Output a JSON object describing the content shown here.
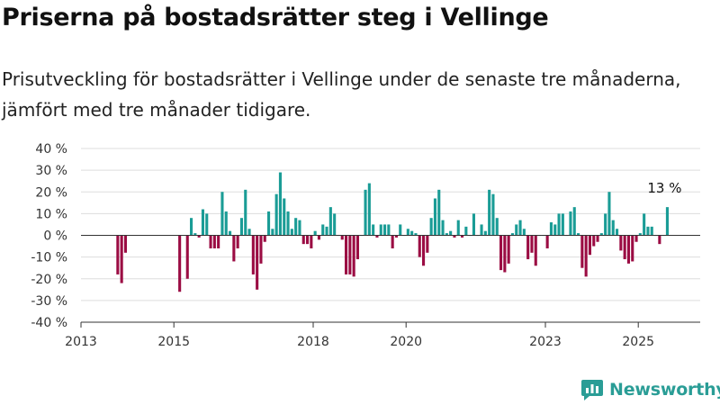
{
  "title": "Priserna på bostadsrätter steg i Vellinge",
  "subtitle": "Prisutveckling för bostadsrätter i Vellinge under de senaste tre månaderna, jämfört med tre månader tidigare.",
  "brand": {
    "name": "Newsworthy",
    "icon": "newsworthy-logo-icon"
  },
  "colors": {
    "positive": "#1a9c96",
    "negative": "#9b0c43",
    "grid": "#dddddd",
    "axis": "#333333"
  },
  "chart_data": {
    "type": "bar",
    "ylim": [
      -40,
      40
    ],
    "yticks": [
      -40,
      -30,
      -20,
      -10,
      0,
      10,
      20,
      30,
      40
    ],
    "ytick_labels": [
      "-40 %",
      "-30 %",
      "-20 %",
      "-10 %",
      "0 %",
      "10 %",
      "20 %",
      "30 %",
      "40 %"
    ],
    "xlim": [
      "2013-01",
      "2026-05"
    ],
    "xticks": [
      "2013",
      "2015",
      "2018",
      "2020",
      "2023",
      "2025"
    ],
    "grid": true,
    "annotation": {
      "text": "13 %",
      "x": "2025-08",
      "value": 13
    },
    "x": [
      "2013-10",
      "2013-11",
      "2013-12",
      "2015-02",
      "2015-04",
      "2015-05",
      "2015-06",
      "2015-07",
      "2015-08",
      "2015-09",
      "2015-10",
      "2015-11",
      "2015-12",
      "2016-01",
      "2016-02",
      "2016-03",
      "2016-04",
      "2016-05",
      "2016-06",
      "2016-07",
      "2016-08",
      "2016-09",
      "2016-10",
      "2016-11",
      "2016-12",
      "2017-01",
      "2017-02",
      "2017-03",
      "2017-04",
      "2017-05",
      "2017-06",
      "2017-07",
      "2017-08",
      "2017-09",
      "2017-10",
      "2017-11",
      "2017-12",
      "2018-01",
      "2018-02",
      "2018-03",
      "2018-04",
      "2018-05",
      "2018-06",
      "2018-07",
      "2018-08",
      "2018-09",
      "2018-10",
      "2018-11",
      "2018-12",
      "2019-01",
      "2019-02",
      "2019-03",
      "2019-04",
      "2019-05",
      "2019-06",
      "2019-07",
      "2019-08",
      "2019-09",
      "2019-10",
      "2019-11",
      "2019-12",
      "2020-01",
      "2020-02",
      "2020-03",
      "2020-04",
      "2020-05",
      "2020-06",
      "2020-07",
      "2020-08",
      "2020-09",
      "2020-10",
      "2020-11",
      "2020-12",
      "2021-01",
      "2021-02",
      "2021-03",
      "2021-04",
      "2021-05",
      "2021-06",
      "2021-07",
      "2021-08",
      "2021-09",
      "2021-10",
      "2021-11",
      "2021-12",
      "2022-01",
      "2022-02",
      "2022-03",
      "2022-04",
      "2022-05",
      "2022-06",
      "2022-07",
      "2022-08",
      "2022-09",
      "2022-10",
      "2022-11",
      "2022-12",
      "2023-01",
      "2023-02",
      "2023-03",
      "2023-04",
      "2023-05",
      "2023-06",
      "2023-07",
      "2023-08",
      "2023-09",
      "2023-10",
      "2023-11",
      "2023-12",
      "2024-01",
      "2024-02",
      "2024-03",
      "2024-04",
      "2024-05",
      "2024-06",
      "2024-07",
      "2024-08",
      "2024-09",
      "2024-10",
      "2024-11",
      "2024-12",
      "2025-01",
      "2025-02",
      "2025-03",
      "2025-04",
      "2025-05",
      "2025-06",
      "2025-07",
      "2025-08"
    ],
    "values": [
      -18,
      -22,
      -8,
      -26,
      -20,
      8,
      1,
      -1,
      12,
      10,
      -6,
      -6,
      -6,
      20,
      11,
      2,
      -12,
      -6,
      8,
      21,
      3,
      -18,
      -25,
      -13,
      -3,
      11,
      3,
      19,
      29,
      17,
      11,
      3,
      8,
      7,
      -4,
      -4,
      -6,
      2,
      -2,
      5,
      4,
      13,
      10,
      0,
      -2,
      -18,
      -18,
      -19,
      -11,
      0,
      21,
      24,
      5,
      -1,
      5,
      5,
      5,
      -6,
      -1,
      5,
      0,
      3,
      2,
      1,
      -10,
      -14,
      -8,
      8,
      17,
      21,
      7,
      1,
      2,
      -1,
      7,
      -1,
      4,
      0,
      10,
      0,
      5,
      2,
      21,
      19,
      8,
      -16,
      -17,
      -13,
      1,
      5,
      7,
      3,
      -11,
      -8,
      -14,
      0,
      0,
      -6,
      6,
      5,
      10,
      10,
      0,
      11,
      13,
      1,
      -15,
      -19,
      -9,
      -5,
      -3,
      1,
      10,
      20,
      7,
      3,
      -7,
      -11,
      -13,
      -12,
      -3,
      1,
      10,
      4,
      4,
      0,
      -4,
      0,
      13
    ]
  }
}
